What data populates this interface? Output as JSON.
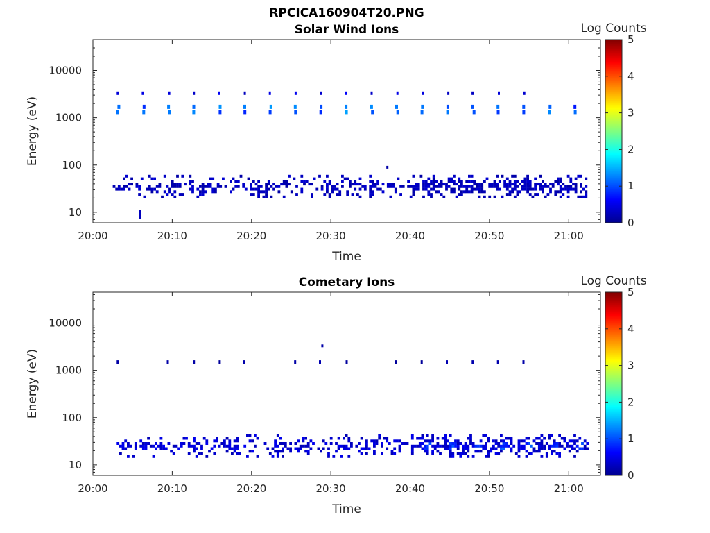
{
  "figure_title": "RPCICA160904T20.PNG",
  "chart_data": [
    {
      "type": "heatmap",
      "title": "Solar Wind Ions",
      "xlabel": "Time",
      "ylabel": "Energy (eV)",
      "y_scale": "log",
      "ylim": [
        6,
        45000
      ],
      "xlim": [
        "20:00",
        "21:04"
      ],
      "xticks": [
        "20:00",
        "20:10",
        "20:20",
        "20:30",
        "20:40",
        "20:50",
        "21:00"
      ],
      "yticks": [
        "10",
        "100",
        "1000",
        "10000"
      ],
      "colorbar": {
        "label": "Log Counts",
        "range": [
          0,
          5
        ],
        "ticks": [
          "0",
          "1",
          "2",
          "3",
          "4",
          "5"
        ]
      },
      "colors": {
        "background": "#ffffff",
        "low": "#00008f",
        "high": "#800000"
      },
      "features": [
        {
          "name": "beam",
          "t_start": 3.0,
          "t_end": 61.5,
          "period": 3.2,
          "energy": 1500,
          "log_counts": 1.2
        },
        {
          "name": "beam_upper",
          "t_start": 3.0,
          "t_end": 55.0,
          "period": 3.2,
          "energy": 3300,
          "log_counts": 0.5
        },
        {
          "name": "low_energy_band",
          "t_start": 2.5,
          "t_end": 62.5,
          "energy": 35,
          "log_counts": 0.3
        },
        {
          "name": "isolated_count",
          "t": 5.8,
          "energy": 9,
          "log_counts": 0.3
        },
        {
          "name": "isolated_count",
          "t": 37.0,
          "energy": 90,
          "log_counts": 0.2
        }
      ]
    },
    {
      "type": "heatmap",
      "title": "Cometary Ions",
      "xlabel": "Time",
      "ylabel": "Energy (eV)",
      "y_scale": "log",
      "ylim": [
        6,
        45000
      ],
      "xlim": [
        "20:00",
        "21:04"
      ],
      "xticks": [
        "20:00",
        "20:10",
        "20:20",
        "20:30",
        "20:40",
        "20:50",
        "21:00"
      ],
      "yticks": [
        "10",
        "100",
        "1000",
        "10000"
      ],
      "colorbar": {
        "label": "Log Counts",
        "range": [
          0,
          5
        ],
        "ticks": [
          "0",
          "1",
          "2",
          "3",
          "4",
          "5"
        ]
      },
      "colors": {
        "background": "#ffffff",
        "low": "#00008f",
        "high": "#800000"
      },
      "features": [
        {
          "name": "sparse_beam",
          "t_start": 3.0,
          "t_end": 61.5,
          "period": 3.2,
          "energy": 1500,
          "log_counts": 0.2
        },
        {
          "name": "low_energy_band",
          "t_start": 3.0,
          "t_end": 62.5,
          "energy": 25,
          "log_counts": 0.4
        },
        {
          "name": "isolated_count",
          "t": 28.8,
          "energy": 3300,
          "log_counts": 0.2
        }
      ]
    }
  ]
}
